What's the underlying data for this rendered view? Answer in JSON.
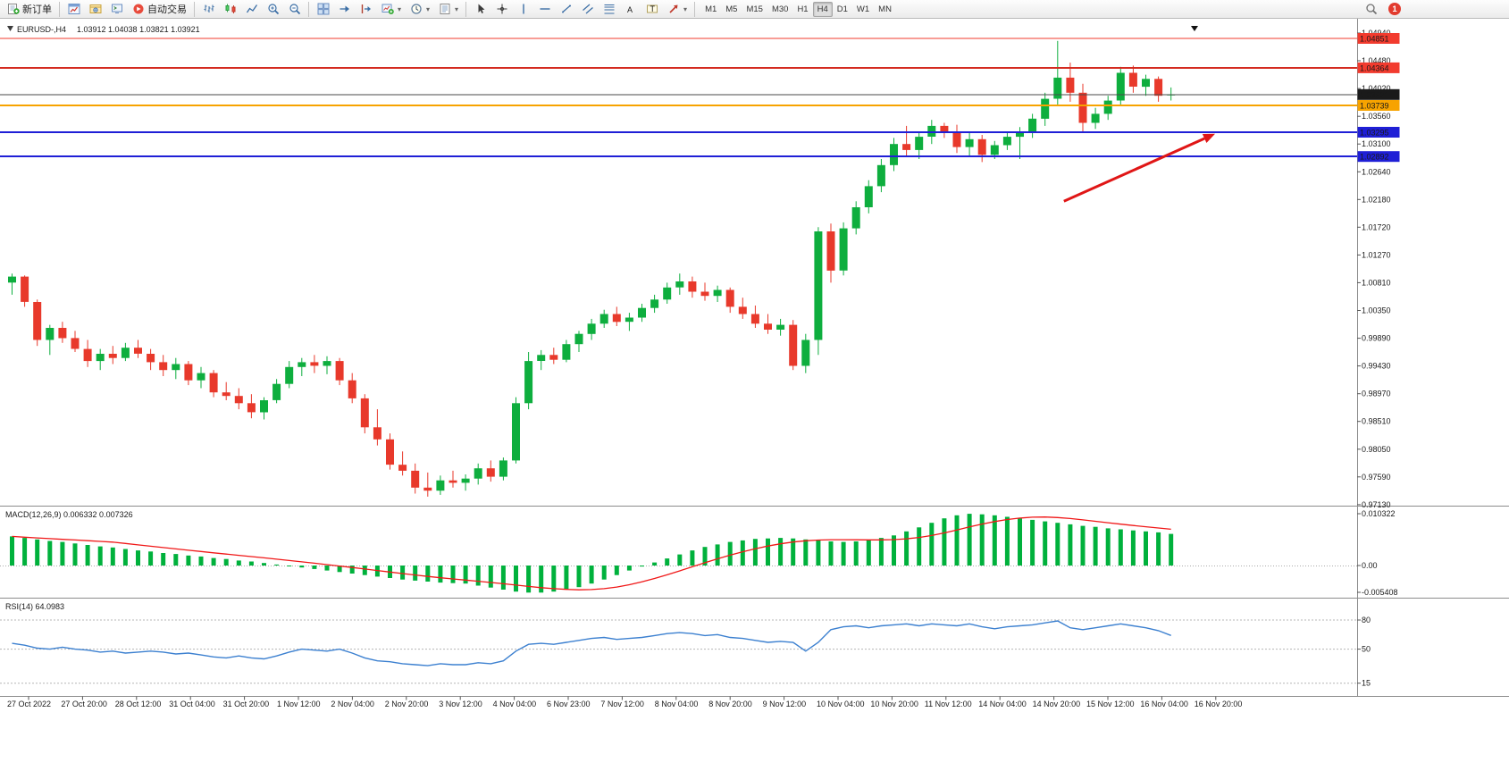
{
  "colors": {
    "candle_up": "#0EAE3E",
    "candle_down": "#E8392B",
    "macd_bar": "#00B13C",
    "macd_signal": "#F01818",
    "rsi_line": "#3C80D0",
    "resistance_line": "#F23B2E",
    "resistance_line2": "#D42B20",
    "orange_line": "#F7A300",
    "support_line": "#1F1FD6",
    "bid_line": "#4A4A4A",
    "arrow": "#E01616",
    "badge_bid_bg": "#1A1A1A"
  },
  "toolbar": {
    "buttons": [
      {
        "icon": "new-order",
        "label": "新订单",
        "name": "new-order-button"
      },
      {
        "sep": true
      },
      {
        "icon": "chart-window",
        "name": "charts-button"
      },
      {
        "icon": "navigator",
        "name": "navigator-button"
      },
      {
        "icon": "terminal",
        "name": "terminal-button"
      },
      {
        "icon": "autotrade",
        "label": "自动交易",
        "name": "auto-trading-button"
      },
      {
        "sep": true
      },
      {
        "icon": "bar-chart",
        "name": "bar-chart-button"
      },
      {
        "icon": "candle-chart",
        "name": "candlestick-chart-button"
      },
      {
        "icon": "line-chart",
        "name": "line-chart-button"
      },
      {
        "icon": "zoom-in",
        "name": "zoom-in-button"
      },
      {
        "icon": "zoom-out",
        "name": "zoom-out-button"
      },
      {
        "sep": true
      },
      {
        "icon": "tile-windows",
        "name": "tile-windows-button"
      },
      {
        "icon": "auto-scroll",
        "name": "auto-scroll-button"
      },
      {
        "icon": "chart-shift",
        "name": "chart-shift-button"
      },
      {
        "icon": "new-chart",
        "dropdown": true,
        "name": "new-chart-button"
      },
      {
        "icon": "clock",
        "dropdown": true,
        "name": "period-button"
      },
      {
        "icon": "templates",
        "dropdown": true,
        "name": "templates-button"
      },
      {
        "sep": true
      },
      {
        "icon": "cursor",
        "name": "cursor-button"
      },
      {
        "icon": "crosshair",
        "name": "crosshair-button"
      },
      {
        "icon": "vertical-line",
        "name": "vertical-line-button"
      },
      {
        "icon": "horizontal-line",
        "name": "horizontal-line-button"
      },
      {
        "icon": "trend-line",
        "name": "trend-line-button"
      },
      {
        "icon": "channel",
        "name": "channel-button"
      },
      {
        "icon": "fibonacci",
        "name": "fibonacci-button"
      },
      {
        "icon": "text",
        "name": "text-button"
      },
      {
        "icon": "text-label",
        "name": "text-label-button"
      },
      {
        "icon": "arrows",
        "dropdown": true,
        "name": "arrows-button"
      },
      {
        "sep": true
      }
    ],
    "timeframes": [
      "M1",
      "M5",
      "M15",
      "M30",
      "H1",
      "H4",
      "D1",
      "W1",
      "MN"
    ],
    "active_timeframe": "H4",
    "notification_badge": "1"
  },
  "chart": {
    "symbol_label": "EURUSD-,H4",
    "ohlc_label": "1.03912 1.04038 1.03821 1.03921",
    "macd_label": "MACD(12,26,9) 0.006332 0.007326",
    "rsi_label": "RSI(14) 64.0983"
  },
  "price_axis": {
    "ticks": [
      "1.04940",
      "1.04480",
      "1.04020",
      "1.03560",
      "1.03100",
      "1.02640",
      "1.02180",
      "1.01720",
      "1.01270",
      "1.00810",
      "1.00350",
      "0.99890",
      "0.99430",
      "0.98970",
      "0.98510",
      "0.98050",
      "0.97590",
      "0.97130"
    ]
  },
  "badges": [
    {
      "text": "1.04851",
      "price": 1.04851,
      "bg": "#F23B2E"
    },
    {
      "text": "1.04364",
      "price": 1.04364,
      "bg": "#F23B2E"
    },
    {
      "text": "1.03921",
      "price": 1.03921,
      "bg": "#1A1A1A"
    },
    {
      "text": "1.03739",
      "price": 1.03739,
      "bg": "#F7A300"
    },
    {
      "text": "1.03295",
      "price": 1.03295,
      "bg": "#1F1FD6"
    },
    {
      "text": "1.02892",
      "price": 1.02892,
      "bg": "#1F1FD6"
    }
  ],
  "time_axis": [
    "27 Oct 2022",
    "27 Oct 20:00",
    "28 Oct 12:00",
    "31 Oct 04:00",
    "31 Oct 20:00",
    "1 Nov 12:00",
    "2 Nov 04:00",
    "2 Nov 20:00",
    "3 Nov 12:00",
    "4 Nov 04:00",
    "6 Nov 23:00",
    "7 Nov 12:00",
    "8 Nov 04:00",
    "8 Nov 20:00",
    "9 Nov 12:00",
    "10 Nov 04:00",
    "10 Nov 20:00",
    "11 Nov 12:00",
    "14 Nov 04:00",
    "14 Nov 20:00",
    "15 Nov 12:00",
    "16 Nov 04:00",
    "16 Nov 20:00"
  ],
  "macd_axis": [
    "0.010322",
    "0.00",
    "-0.005408"
  ],
  "rsi_axis": [
    "80",
    "50",
    "15"
  ],
  "chart_data": [
    {
      "type": "candlestick",
      "symbol": "EURUSD",
      "timeframe": "H4",
      "current_bar": {
        "open": 1.03912,
        "high": 1.04038,
        "low": 1.03821,
        "close": 1.03921
      },
      "y_range": [
        0.969,
        1.051
      ],
      "hlines": [
        {
          "price": 1.04851,
          "color_key": "resistance_line",
          "width": 1
        },
        {
          "price": 1.04364,
          "color_key": "resistance_line2",
          "width": 2
        },
        {
          "price": 1.03921,
          "color_key": "bid_line",
          "width": 1
        },
        {
          "price": 1.03739,
          "color_key": "orange_line",
          "width": 2
        },
        {
          "price": 1.03295,
          "color_key": "support_line",
          "width": 2
        },
        {
          "price": 1.02892,
          "color_key": "support_line",
          "width": 2
        }
      ],
      "annotations": [
        {
          "type": "arrow",
          "from": {
            "bar": 83.5,
            "price": 1.0215
          },
          "to": {
            "bar": 95.5,
            "price": 1.0327
          }
        }
      ],
      "ohlc": [
        [
          1.008,
          1.0095,
          1.006,
          1.009
        ],
        [
          1.009,
          1.0092,
          1.004,
          1.0048
        ],
        [
          1.0048,
          1.0052,
          0.9975,
          0.9985
        ],
        [
          0.9985,
          1.001,
          0.996,
          1.0005
        ],
        [
          1.0005,
          1.0015,
          0.998,
          0.9988
        ],
        [
          0.9988,
          1.0,
          0.9965,
          0.997
        ],
        [
          0.997,
          0.9985,
          0.994,
          0.995
        ],
        [
          0.995,
          0.997,
          0.9935,
          0.9962
        ],
        [
          0.9962,
          0.9975,
          0.9945,
          0.9955
        ],
        [
          0.9955,
          0.998,
          0.995,
          0.9972
        ],
        [
          0.9972,
          0.9985,
          0.9955,
          0.9962
        ],
        [
          0.9962,
          0.997,
          0.9935,
          0.9948
        ],
        [
          0.9948,
          0.996,
          0.9925,
          0.9935
        ],
        [
          0.9935,
          0.9955,
          0.992,
          0.9945
        ],
        [
          0.9945,
          0.995,
          0.991,
          0.9918
        ],
        [
          0.9918,
          0.994,
          0.9905,
          0.993
        ],
        [
          0.993,
          0.9935,
          0.989,
          0.9898
        ],
        [
          0.9898,
          0.9915,
          0.9885,
          0.9892
        ],
        [
          0.9892,
          0.9905,
          0.987,
          0.988
        ],
        [
          0.988,
          0.9895,
          0.9855,
          0.9865
        ],
        [
          0.9865,
          0.989,
          0.9853,
          0.9885
        ],
        [
          0.9885,
          0.992,
          0.988,
          0.9912
        ],
        [
          0.9912,
          0.995,
          0.9905,
          0.994
        ],
        [
          0.994,
          0.9955,
          0.9925,
          0.9948
        ],
        [
          0.9948,
          0.996,
          0.993,
          0.9942
        ],
        [
          0.9942,
          0.9958,
          0.9928,
          0.995
        ],
        [
          0.995,
          0.9955,
          0.991,
          0.9918
        ],
        [
          0.9918,
          0.993,
          0.988,
          0.9888
        ],
        [
          0.9888,
          0.9895,
          0.983,
          0.984
        ],
        [
          0.984,
          0.987,
          0.981,
          0.982
        ],
        [
          0.982,
          0.983,
          0.977,
          0.9778
        ],
        [
          0.9778,
          0.98,
          0.976,
          0.9768
        ],
        [
          0.9768,
          0.978,
          0.973,
          0.974
        ],
        [
          0.974,
          0.9765,
          0.9725,
          0.9735
        ],
        [
          0.9735,
          0.976,
          0.9728,
          0.9752
        ],
        [
          0.9752,
          0.9768,
          0.974,
          0.9748
        ],
        [
          0.9748,
          0.9762,
          0.9735,
          0.9755
        ],
        [
          0.9755,
          0.978,
          0.9745,
          0.9772
        ],
        [
          0.9772,
          0.9785,
          0.975,
          0.9758
        ],
        [
          0.9758,
          0.979,
          0.9752,
          0.9785
        ],
        [
          0.9785,
          0.989,
          0.978,
          0.988
        ],
        [
          0.988,
          0.9965,
          0.987,
          0.995
        ],
        [
          0.995,
          0.9968,
          0.9935,
          0.996
        ],
        [
          0.996,
          0.9972,
          0.9945,
          0.9952
        ],
        [
          0.9952,
          0.9985,
          0.9948,
          0.9978
        ],
        [
          0.9978,
          1.0,
          0.9965,
          0.9995
        ],
        [
          0.9995,
          1.002,
          0.9985,
          1.0012
        ],
        [
          1.0012,
          1.0035,
          1.0005,
          1.0028
        ],
        [
          1.0028,
          1.004,
          1.0008,
          1.0015
        ],
        [
          1.0015,
          1.003,
          1.0,
          1.0022
        ],
        [
          1.0022,
          1.0045,
          1.0015,
          1.0038
        ],
        [
          1.0038,
          1.006,
          1.003,
          1.0052
        ],
        [
          1.0052,
          1.008,
          1.0045,
          1.0072
        ],
        [
          1.0072,
          1.0095,
          1.006,
          1.0082
        ],
        [
          1.0082,
          1.009,
          1.0055,
          1.0065
        ],
        [
          1.0065,
          1.008,
          1.005,
          1.0058
        ],
        [
          1.0058,
          1.0075,
          1.0048,
          1.0068
        ],
        [
          1.0068,
          1.0072,
          1.003,
          1.004
        ],
        [
          1.004,
          1.0055,
          1.002,
          1.0028
        ],
        [
          1.0028,
          1.0042,
          1.0005,
          1.0012
        ],
        [
          1.0012,
          1.0028,
          0.9995,
          1.0002
        ],
        [
          1.0002,
          1.002,
          0.9992,
          1.001
        ],
        [
          1.001,
          1.0018,
          0.9935,
          0.9942
        ],
        [
          0.9942,
          0.9995,
          0.993,
          0.9985
        ],
        [
          0.9985,
          1.0172,
          0.996,
          1.0165
        ],
        [
          1.0165,
          1.0178,
          1.008,
          1.01
        ],
        [
          1.01,
          1.018,
          1.0092,
          1.017
        ],
        [
          1.017,
          1.0215,
          1.016,
          1.0205
        ],
        [
          1.0205,
          1.025,
          1.0195,
          1.024
        ],
        [
          1.024,
          1.0285,
          1.023,
          1.0275
        ],
        [
          1.0275,
          1.032,
          1.0265,
          1.031
        ],
        [
          1.031,
          1.034,
          1.029,
          1.03
        ],
        [
          1.03,
          1.033,
          1.0285,
          1.0322
        ],
        [
          1.0322,
          1.035,
          1.031,
          1.034
        ],
        [
          1.034,
          1.0345,
          1.032,
          1.033
        ],
        [
          1.033,
          1.0342,
          1.0295,
          1.0305
        ],
        [
          1.0305,
          1.0328,
          1.029,
          1.0318
        ],
        [
          1.0318,
          1.0325,
          1.028,
          1.0292
        ],
        [
          1.0292,
          1.0315,
          1.0285,
          1.0308
        ],
        [
          1.0308,
          1.033,
          1.03,
          1.0322
        ],
        [
          1.0322,
          1.0338,
          1.0285,
          1.033
        ],
        [
          1.033,
          1.036,
          1.032,
          1.0352
        ],
        [
          1.0352,
          1.0395,
          1.034,
          1.0385
        ],
        [
          1.0385,
          1.0481,
          1.0375,
          1.042
        ],
        [
          1.042,
          1.0445,
          1.038,
          1.0395
        ],
        [
          1.0395,
          1.041,
          1.033,
          1.0345
        ],
        [
          1.0345,
          1.037,
          1.0335,
          1.036
        ],
        [
          1.036,
          1.039,
          1.035,
          1.0382
        ],
        [
          1.0382,
          1.0438,
          1.0375,
          1.0428
        ],
        [
          1.0428,
          1.044,
          1.0395,
          1.0405
        ],
        [
          1.0405,
          1.0425,
          1.039,
          1.0418
        ],
        [
          1.0418,
          1.0422,
          1.038,
          1.039
        ],
        [
          1.03912,
          1.04038,
          1.03821,
          1.03921
        ]
      ]
    },
    {
      "type": "bar",
      "name": "MACD(12,26,9)",
      "signal_period": 9,
      "current_macd": 0.006332,
      "current_signal": 0.007326,
      "axis_ticks": [
        0.010322,
        0,
        -0.005408
      ],
      "values": [
        0.0058,
        0.0055,
        0.0052,
        0.0049,
        0.0047,
        0.0044,
        0.0041,
        0.0038,
        0.0036,
        0.0033,
        0.003,
        0.0028,
        0.0025,
        0.0023,
        0.002,
        0.0018,
        0.0015,
        0.0013,
        0.001,
        0.0008,
        0.0005,
        0.0002,
        -0.0001,
        -0.0004,
        -0.0007,
        -0.001,
        -0.0013,
        -0.0016,
        -0.0019,
        -0.0022,
        -0.0025,
        -0.0028,
        -0.003,
        -0.0032,
        -0.0034,
        -0.0035,
        -0.0036,
        -0.004,
        -0.0044,
        -0.0048,
        -0.0052,
        -0.0054,
        -0.0054,
        -0.0052,
        -0.0048,
        -0.0043,
        -0.0036,
        -0.0028,
        -0.0019,
        -0.001,
        -0.0002,
        0.0006,
        0.0014,
        0.0022,
        0.003,
        0.0037,
        0.0042,
        0.0047,
        0.005,
        0.0053,
        0.0054,
        0.0055,
        0.0054,
        0.0052,
        0.005,
        0.0048,
        0.0047,
        0.0048,
        0.0051,
        0.0055,
        0.006,
        0.0068,
        0.0076,
        0.0085,
        0.0094,
        0.01,
        0.0103,
        0.0102,
        0.01,
        0.0097,
        0.0094,
        0.0091,
        0.0088,
        0.0085,
        0.0082,
        0.0079,
        0.0077,
        0.0074,
        0.0072,
        0.007,
        0.0068,
        0.0066,
        0.0063
      ]
    },
    {
      "type": "line",
      "name": "RSI(14)",
      "current": 64.0983,
      "levels": [
        80,
        50,
        15
      ],
      "y_range": [
        0,
        100
      ],
      "values": [
        56,
        54,
        51,
        50,
        52,
        50,
        49,
        47,
        48,
        46,
        47,
        48,
        47,
        45,
        46,
        44,
        42,
        41,
        43,
        41,
        40,
        43,
        47,
        50,
        49,
        48,
        50,
        46,
        41,
        38,
        37,
        35,
        34,
        33,
        35,
        34,
        34,
        36,
        35,
        38,
        48,
        55,
        56,
        55,
        57,
        59,
        61,
        62,
        60,
        61,
        62,
        64,
        66,
        67,
        66,
        64,
        65,
        62,
        61,
        59,
        57,
        58,
        57,
        48,
        57,
        70,
        73,
        74,
        72,
        74,
        75,
        76,
        74,
        76,
        75,
        74,
        76,
        73,
        71,
        73,
        74,
        75,
        77,
        79,
        72,
        70,
        72,
        74,
        76,
        74,
        72,
        69,
        64.1
      ]
    }
  ]
}
